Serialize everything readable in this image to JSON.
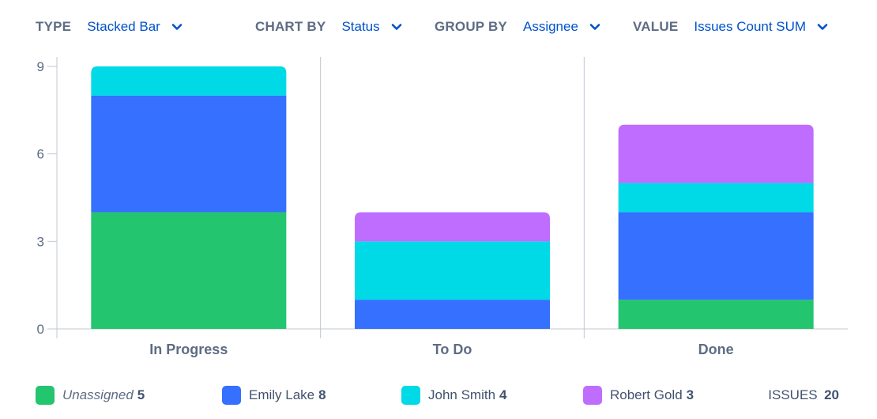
{
  "controls": {
    "type": {
      "label": "TYPE",
      "value": "Stacked Bar"
    },
    "chart_by": {
      "label": "CHART BY",
      "value": "Status"
    },
    "group_by": {
      "label": "GROUP BY",
      "value": "Assignee"
    },
    "value": {
      "label": "VALUE",
      "value": "Issues Count SUM"
    }
  },
  "chart_data": {
    "type": "bar",
    "stacked": true,
    "categories": [
      "In Progress",
      "To Do",
      "Done"
    ],
    "series": [
      {
        "name": "Unassigned",
        "values": [
          4,
          0,
          1
        ],
        "color": "#23c56f"
      },
      {
        "name": "Emily Lake",
        "values": [
          4,
          1,
          3
        ],
        "color": "#3570ff"
      },
      {
        "name": "John Smith",
        "values": [
          1,
          2,
          1
        ],
        "color": "#00d9e6"
      },
      {
        "name": "Robert Gold",
        "values": [
          0,
          1,
          2
        ],
        "color": "#bf6dff"
      }
    ],
    "yticks": [
      0,
      3,
      6,
      9
    ],
    "ylim": [
      0,
      9
    ],
    "grid": false,
    "legend_position": "bottom"
  },
  "legend": {
    "items": [
      {
        "name": "Unassigned",
        "count": "5",
        "italic": true
      },
      {
        "name": "Emily Lake",
        "count": "8",
        "italic": false
      },
      {
        "name": "John Smith",
        "count": "4",
        "italic": false
      },
      {
        "name": "Robert Gold",
        "count": "3",
        "italic": false
      }
    ],
    "total_label": "ISSUES",
    "total_value": "20"
  },
  "colors": {
    "accent": "#0052cc",
    "label": "#5e6c84",
    "axis": "#c1c7d0"
  }
}
